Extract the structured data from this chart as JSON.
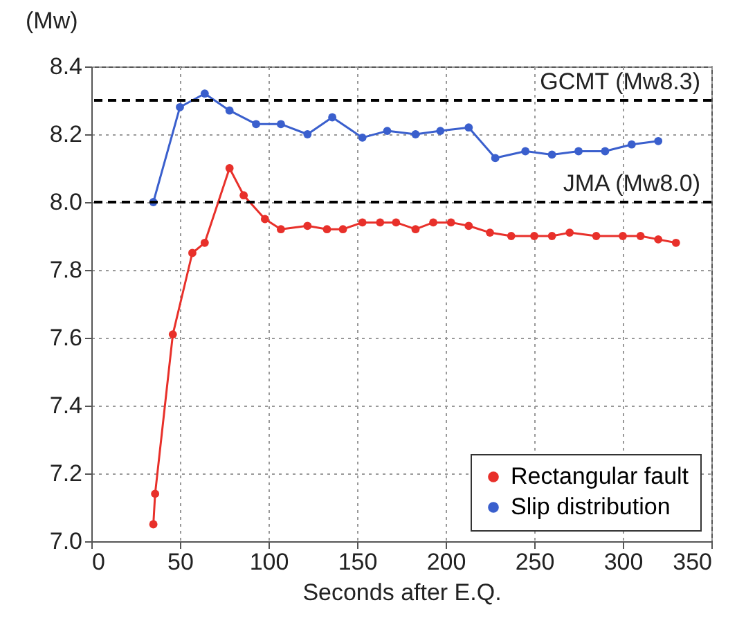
{
  "chart_data": {
    "type": "line",
    "xlabel": "Seconds after E.Q.",
    "ylabel": "(Mw)",
    "xlim": [
      0,
      350
    ],
    "xticks": [
      0,
      50,
      100,
      150,
      200,
      250,
      300,
      350
    ],
    "ylim": [
      7.0,
      8.4
    ],
    "yticks": [
      {
        "value": 7.0,
        "label": "7.0"
      },
      7.2,
      7.4,
      7.6,
      7.8,
      {
        "value": 8.0,
        "label": "8.0"
      },
      8.2,
      8.4
    ],
    "grid": true,
    "legend": "bottom right",
    "marker": "circle",
    "line_style": "solid",
    "series": [
      {
        "name": "Rectangular fault",
        "color": "#e8302a",
        "x": [
          35,
          36,
          46,
          57,
          64,
          78,
          86,
          98,
          107,
          122,
          133,
          142,
          153,
          163,
          172,
          183,
          193,
          203,
          213,
          225,
          237,
          250,
          260,
          270,
          285,
          300,
          310,
          320,
          330
        ],
        "values": [
          7.05,
          7.14,
          7.61,
          7.85,
          7.88,
          8.1,
          8.02,
          7.95,
          7.92,
          7.93,
          7.92,
          7.92,
          7.94,
          7.94,
          7.94,
          7.92,
          7.94,
          7.94,
          7.93,
          7.91,
          7.9,
          7.9,
          7.9,
          7.91,
          7.9,
          7.9,
          7.9,
          7.89,
          7.88
        ]
      },
      {
        "name": "Slip distribution",
        "color": "#3a5fcd",
        "x": [
          35,
          50,
          64,
          78,
          93,
          107,
          122,
          136,
          153,
          167,
          183,
          197,
          213,
          228,
          245,
          260,
          275,
          290,
          305,
          320
        ],
        "values": [
          8.0,
          8.28,
          8.32,
          8.27,
          8.23,
          8.23,
          8.2,
          8.25,
          8.19,
          8.21,
          8.2,
          8.21,
          8.22,
          8.13,
          8.15,
          8.14,
          8.15,
          8.15,
          8.17,
          8.18
        ]
      }
    ],
    "ref_lines": [
      {
        "axis": "y",
        "value": 8.3,
        "label": "GCMT (Mw8.3)",
        "color": "#000000",
        "line_style": "dashed"
      },
      {
        "axis": "y",
        "value": 8.0,
        "label": "JMA (Mw8.0)",
        "color": "#000000",
        "line_style": "dashed"
      }
    ]
  }
}
